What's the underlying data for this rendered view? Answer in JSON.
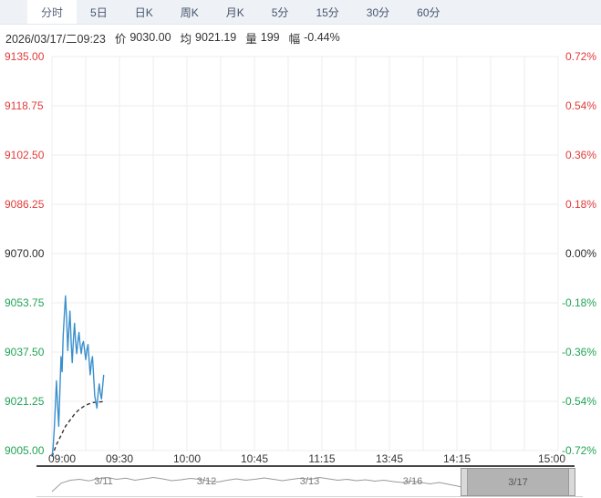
{
  "tabs": {
    "items": [
      {
        "label": "分时",
        "selected": true
      },
      {
        "label": "5日",
        "selected": false
      },
      {
        "label": "日K",
        "selected": false
      },
      {
        "label": "周K",
        "selected": false
      },
      {
        "label": "月K",
        "selected": false
      },
      {
        "label": "5分",
        "selected": false
      },
      {
        "label": "15分",
        "selected": false
      },
      {
        "label": "30分",
        "selected": false
      },
      {
        "label": "60分",
        "selected": false
      }
    ]
  },
  "status": {
    "datetime": "2026/03/17/二09:23",
    "fields": [
      {
        "label": "价",
        "value": "9030.00"
      },
      {
        "label": "均",
        "value": "9021.19"
      },
      {
        "label": "量",
        "value": "199"
      },
      {
        "label": "幅",
        "value": "-0.44%"
      }
    ]
  },
  "chart_data": {
    "type": "line",
    "title": "intraday time-sharing (分时) chart",
    "previous_close": 9070.0,
    "ylim": [
      9005.0,
      9135.0
    ],
    "y_axis_left": [
      9135.0,
      9118.75,
      9102.5,
      9086.25,
      9070.0,
      9053.75,
      9037.5,
      9021.25,
      9005.0
    ],
    "y_axis_right": [
      "0.72%",
      "0.54%",
      "0.36%",
      "0.18%",
      "0.00%",
      "-0.18%",
      "-0.36%",
      "-0.54%",
      "-0.72%"
    ],
    "x_axis": {
      "session_minutes": 225,
      "gridline_step_minutes": 15,
      "ticks": [
        {
          "label": "09:00",
          "minute": 0
        },
        {
          "label": "09:30",
          "minute": 30
        },
        {
          "label": "10:00",
          "minute": 60
        },
        {
          "label": "10:45",
          "minute": 90
        },
        {
          "label": "11:15",
          "minute": 120
        },
        {
          "label": "13:45",
          "minute": 150
        },
        {
          "label": "14:15",
          "minute": 180
        },
        {
          "label": "15:00",
          "minute": 225
        }
      ]
    },
    "series": [
      {
        "name": "price",
        "color": "#3a8fcc",
        "dashed": false,
        "points": [
          [
            0,
            9003
          ],
          [
            0.5,
            9006
          ],
          [
            1,
            9012
          ],
          [
            1.5,
            9020
          ],
          [
            2,
            9028
          ],
          [
            2.5,
            9020
          ],
          [
            3,
            9013
          ],
          [
            3.5,
            9024
          ],
          [
            4,
            9036
          ],
          [
            4.5,
            9031
          ],
          [
            5,
            9043
          ],
          [
            5.5,
            9050
          ],
          [
            6,
            9056
          ],
          [
            6.5,
            9049
          ],
          [
            7,
            9038
          ],
          [
            7.5,
            9045
          ],
          [
            8,
            9051
          ],
          [
            8.5,
            9041
          ],
          [
            9,
            9034
          ],
          [
            9.5,
            9041
          ],
          [
            10,
            9047
          ],
          [
            10.5,
            9041
          ],
          [
            11,
            9037
          ],
          [
            11.5,
            9041
          ],
          [
            12,
            9044
          ],
          [
            12.5,
            9040
          ],
          [
            13,
            9037
          ],
          [
            13.5,
            9040
          ],
          [
            14,
            9041
          ],
          [
            14.5,
            9038
          ],
          [
            15,
            9035
          ],
          [
            15.5,
            9038
          ],
          [
            16,
            9040
          ],
          [
            16.5,
            9035
          ],
          [
            17,
            9030
          ],
          [
            17.5,
            9034
          ],
          [
            18,
            9036
          ],
          [
            18.5,
            9030
          ],
          [
            19,
            9023
          ],
          [
            19.5,
            9021
          ],
          [
            20,
            9019
          ],
          [
            20.5,
            9024
          ],
          [
            21,
            9027
          ],
          [
            21.5,
            9024
          ],
          [
            22,
            9022
          ],
          [
            22.5,
            9026
          ],
          [
            23,
            9030
          ]
        ]
      },
      {
        "name": "average",
        "color": "#333333",
        "dashed": true,
        "points": [
          [
            0,
            9003
          ],
          [
            2,
            9007
          ],
          [
            4,
            9010
          ],
          [
            6,
            9013
          ],
          [
            8,
            9015
          ],
          [
            10,
            9017
          ],
          [
            12,
            9018.5
          ],
          [
            14,
            9019.5
          ],
          [
            16,
            9020.3
          ],
          [
            18,
            9020.8
          ],
          [
            20,
            9021.0
          ],
          [
            22,
            9021.1
          ],
          [
            23,
            9021.19
          ]
        ]
      }
    ],
    "colors": {
      "up": "#e23a3a",
      "down": "#21a356",
      "neutral": "#2b2b2b",
      "grid": "#ededed"
    }
  },
  "navigator": {
    "dates": [
      {
        "label": "3/11",
        "selected": false
      },
      {
        "label": "3/12",
        "selected": false
      },
      {
        "label": "3/13",
        "selected": false
      },
      {
        "label": "3/16",
        "selected": false
      },
      {
        "label": "3/17",
        "selected": true
      }
    ],
    "selected_range_label": "3/17",
    "sparkline_color": "#9a9a9a",
    "sparkline": [
      0.92,
      0.55,
      0.42,
      0.38,
      0.45,
      0.35,
      0.3,
      0.38,
      0.33,
      0.42,
      0.36,
      0.3,
      0.36,
      0.44,
      0.4,
      0.34,
      0.38,
      0.45,
      0.5,
      0.42,
      0.36,
      0.42,
      0.38,
      0.32,
      0.38,
      0.44,
      0.38,
      0.33,
      0.38,
      0.3,
      0.36,
      0.42,
      0.38,
      0.44,
      0.4,
      0.46,
      0.42,
      0.48,
      0.52,
      0.46,
      0.52,
      0.58,
      0.52,
      0.6,
      0.68,
      0.78
    ]
  }
}
